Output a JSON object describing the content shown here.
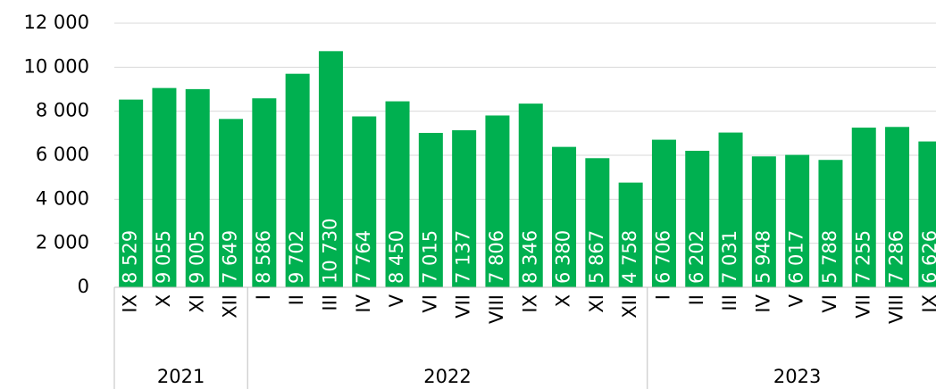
{
  "chart_data": {
    "type": "bar",
    "categories": [
      "IX",
      "X",
      "XI",
      "XII",
      "I",
      "II",
      "III",
      "IV",
      "V",
      "VI",
      "VII",
      "VIII",
      "IX",
      "X",
      "XI",
      "XII",
      "I",
      "II",
      "III",
      "IV",
      "V",
      "VI",
      "VII",
      "VIII",
      "IX"
    ],
    "groups": [
      {
        "label": "2021",
        "count": 4
      },
      {
        "label": "2022",
        "count": 12
      },
      {
        "label": "2023",
        "count": 9
      }
    ],
    "values": [
      8529,
      9055,
      9005,
      7649,
      8586,
      9702,
      10730,
      7764,
      8450,
      7015,
      7137,
      7806,
      8346,
      6380,
      5867,
      4758,
      6706,
      6202,
      7031,
      5948,
      6017,
      5788,
      7255,
      7286,
      6626
    ],
    "value_labels": [
      "8 529",
      "9 055",
      "9 005",
      "7 649",
      "8 586",
      "9 702",
      "10 730",
      "7 764",
      "8 450",
      "7 015",
      "7 137",
      "7 806",
      "8 346",
      "6 380",
      "5 867",
      "4 758",
      "6 706",
      "6 202",
      "7 031",
      "5 948",
      "6 017",
      "5 788",
      "7 255",
      "7 286",
      "6 626"
    ],
    "color": "#00b050",
    "ylim": [
      0,
      12000
    ],
    "yticks": [
      0,
      {
        "value": 2000,
        "label": "2 000"
      },
      {
        "value": 4000,
        "label": "4 000"
      },
      {
        "value": 6000,
        "label": "6 000"
      },
      {
        "value": 8000,
        "label": "8 000"
      },
      {
        "value": 10000,
        "label": "10 000"
      },
      {
        "value": 12000,
        "label": "12 000"
      }
    ],
    "grid": true
  }
}
